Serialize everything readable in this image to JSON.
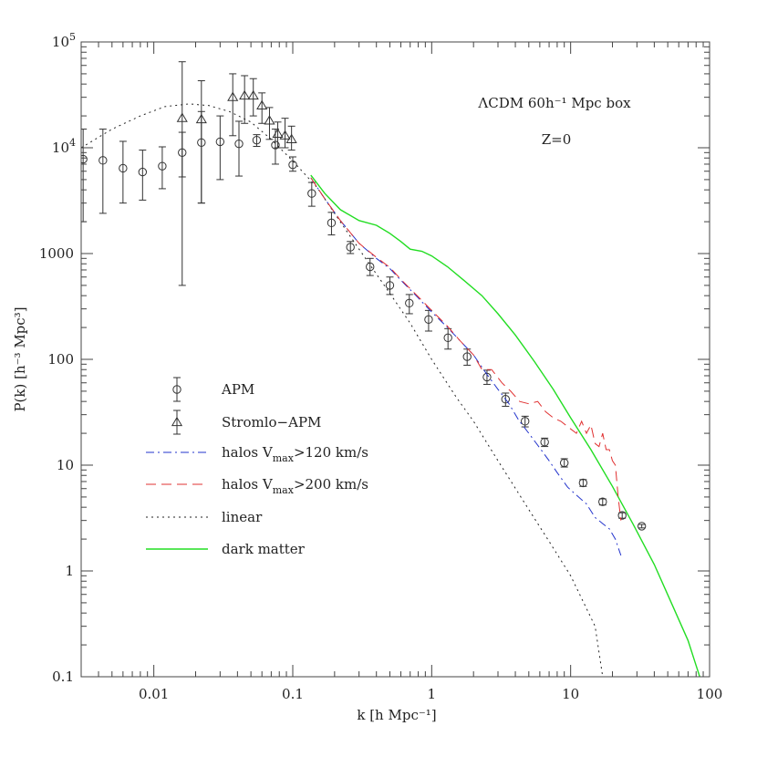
{
  "chart_data": {
    "type": "scatter",
    "xscale": "log",
    "yscale": "log",
    "xlim": [
      0.003,
      100
    ],
    "ylim": [
      0.1,
      100000
    ],
    "xlabel": "k [h Mpc⁻¹]",
    "ylabel": "P(k) [h⁻³ Mpc³]",
    "annotations": [
      "ΛCDM 60h⁻¹ Mpc box",
      "Z=0"
    ],
    "x_ticks": [
      {
        "v": 0.01,
        "label": "0.01"
      },
      {
        "v": 0.1,
        "label": "0.1"
      },
      {
        "v": 1,
        "label": "1"
      },
      {
        "v": 10,
        "label": "10"
      },
      {
        "v": 100,
        "label": "100"
      }
    ],
    "y_ticks": [
      {
        "v": 0.1,
        "label": "0.1"
      },
      {
        "v": 1,
        "label": "1"
      },
      {
        "v": 10,
        "label": "10"
      },
      {
        "v": 100,
        "label": "100"
      },
      {
        "v": 1000,
        "label": "1000"
      },
      {
        "v": 10000,
        "label": "10",
        "exp": "4"
      },
      {
        "v": 100000,
        "label": "10",
        "exp": "5"
      }
    ],
    "legend": {
      "placement": "lower-left",
      "entries": [
        {
          "label": "APM",
          "marker": "circle"
        },
        {
          "label": "Stromlo−APM",
          "marker": "triangle"
        },
        {
          "label": "halos V",
          "sub": "max",
          "tail": ">120 km/s",
          "style": "dashdot",
          "color": "#2233cc"
        },
        {
          "label": "halos V",
          "sub": "max",
          "tail": ">200 km/s",
          "style": "dashed",
          "color": "#e03030"
        },
        {
          "label": "linear",
          "style": "dotted",
          "color": "#222222"
        },
        {
          "label": "dark matter",
          "style": "solid",
          "color": "#22dd22"
        }
      ]
    },
    "series": [
      {
        "name": "APM",
        "kind": "points",
        "marker": "circle",
        "points": [
          [
            0.0031,
            7800,
            2000,
            15000
          ],
          [
            0.0043,
            7600,
            2400,
            15000
          ],
          [
            0.006,
            6400,
            3000,
            11500
          ],
          [
            0.0083,
            5900,
            3200,
            9500
          ],
          [
            0.0115,
            6700,
            4100,
            10200
          ],
          [
            0.016,
            9000,
            5300,
            14000
          ],
          [
            0.022,
            11200,
            3000,
            22000
          ],
          [
            0.03,
            11400,
            5000,
            20000
          ],
          [
            0.041,
            10900,
            5400,
            17800
          ],
          [
            0.055,
            11800,
            10300,
            13300
          ],
          [
            0.075,
            10600,
            7000,
            15000
          ],
          [
            0.1,
            6900,
            6000,
            8200
          ],
          [
            0.137,
            3700,
            2800,
            4700
          ],
          [
            0.19,
            1950,
            1500,
            2450
          ],
          [
            0.26,
            1150,
            1000,
            1300
          ],
          [
            0.36,
            750,
            620,
            900
          ],
          [
            0.5,
            500,
            410,
            600
          ],
          [
            0.69,
            340,
            270,
            410
          ],
          [
            0.95,
            238,
            185,
            290
          ],
          [
            1.31,
            160,
            125,
            195
          ],
          [
            1.8,
            106,
            88,
            125
          ],
          [
            2.5,
            68,
            58,
            79
          ],
          [
            3.4,
            42,
            36,
            48
          ],
          [
            4.7,
            26,
            23,
            29
          ],
          [
            6.5,
            16.5,
            15,
            18
          ],
          [
            9,
            10.5,
            9.6,
            11.5
          ],
          [
            12.3,
            6.8,
            6.3,
            7.3
          ],
          [
            17,
            4.5,
            4.2,
            4.8
          ],
          [
            23.5,
            3.35,
            3.15,
            3.55
          ],
          [
            32.5,
            2.65,
            2.55,
            2.75
          ]
        ]
      },
      {
        "name": "Stromlo−APM",
        "kind": "points",
        "marker": "triangle",
        "points": [
          [
            0.016,
            19000,
            500,
            65000
          ],
          [
            0.022,
            18500,
            3000,
            43000
          ],
          [
            0.037,
            30000,
            13000,
            50000
          ],
          [
            0.045,
            31000,
            17000,
            48000
          ],
          [
            0.052,
            31000,
            20000,
            45000
          ],
          [
            0.06,
            25000,
            17000,
            33000
          ],
          [
            0.068,
            18000,
            12000,
            24000
          ],
          [
            0.078,
            13500,
            10000,
            17500
          ],
          [
            0.088,
            13000,
            10000,
            19000
          ],
          [
            0.098,
            12000,
            9500,
            16000
          ]
        ]
      },
      {
        "name": "linear",
        "kind": "line",
        "style": "dotted",
        "color": "#222222",
        "points": [
          [
            0.003,
            10000
          ],
          [
            0.005,
            15000
          ],
          [
            0.008,
            20000
          ],
          [
            0.012,
            24500
          ],
          [
            0.018,
            26000
          ],
          [
            0.025,
            25000
          ],
          [
            0.035,
            22000
          ],
          [
            0.05,
            17500
          ],
          [
            0.07,
            12000
          ],
          [
            0.1,
            7500
          ],
          [
            0.15,
            4200
          ],
          [
            0.2,
            2400
          ],
          [
            0.3,
            1100
          ],
          [
            0.5,
            420
          ],
          [
            0.7,
            220
          ],
          [
            1,
            100
          ],
          [
            1.5,
            44
          ],
          [
            2,
            26
          ],
          [
            3,
            11
          ],
          [
            5,
            3.8
          ],
          [
            7,
            1.9
          ],
          [
            10,
            0.9
          ],
          [
            15,
            0.3
          ],
          [
            17,
            0.1
          ]
        ]
      },
      {
        "name": "dark matter",
        "kind": "line",
        "style": "solid",
        "color": "#22dd22",
        "points": [
          [
            0.135,
            5500
          ],
          [
            0.17,
            3700
          ],
          [
            0.22,
            2600
          ],
          [
            0.3,
            2050
          ],
          [
            0.4,
            1850
          ],
          [
            0.5,
            1550
          ],
          [
            0.6,
            1300
          ],
          [
            0.7,
            1100
          ],
          [
            0.85,
            1050
          ],
          [
            1,
            950
          ],
          [
            1.3,
            750
          ],
          [
            1.7,
            560
          ],
          [
            2.3,
            400
          ],
          [
            3,
            270
          ],
          [
            4,
            170
          ],
          [
            5.5,
            95
          ],
          [
            7.5,
            52
          ],
          [
            10,
            28
          ],
          [
            14,
            14
          ],
          [
            20,
            6.3
          ],
          [
            28,
            2.8
          ],
          [
            40,
            1.15
          ],
          [
            55,
            0.45
          ],
          [
            70,
            0.22
          ],
          [
            85,
            0.1
          ]
        ]
      },
      {
        "name": "halos Vmax>120 km/s",
        "kind": "line",
        "style": "dashdot",
        "color": "#2233cc",
        "points": [
          [
            0.135,
            5200
          ],
          [
            0.17,
            3300
          ],
          [
            0.22,
            2050
          ],
          [
            0.3,
            1250
          ],
          [
            0.4,
            900
          ],
          [
            0.5,
            720
          ],
          [
            0.6,
            560
          ],
          [
            0.8,
            380
          ],
          [
            1,
            280
          ],
          [
            1.3,
            200
          ],
          [
            1.6,
            150
          ],
          [
            2,
            110
          ],
          [
            2.5,
            72
          ],
          [
            3,
            52
          ],
          [
            3.6,
            38
          ],
          [
            4.2,
            27
          ],
          [
            5,
            20
          ],
          [
            6,
            14.5
          ],
          [
            7,
            11
          ],
          [
            8,
            8.5
          ],
          [
            9.5,
            6.2
          ],
          [
            11,
            5.2
          ],
          [
            13,
            4.3
          ],
          [
            15,
            3.2
          ],
          [
            17,
            2.8
          ],
          [
            19,
            2.5
          ],
          [
            21,
            2
          ],
          [
            23,
            1.4
          ]
        ]
      },
      {
        "name": "halos Vmax>200 km/s",
        "kind": "line",
        "style": "dashed",
        "color": "#e03030",
        "points": [
          [
            0.135,
            5200
          ],
          [
            0.17,
            3300
          ],
          [
            0.22,
            2050
          ],
          [
            0.3,
            1250
          ],
          [
            0.4,
            920
          ],
          [
            0.5,
            740
          ],
          [
            0.6,
            570
          ],
          [
            0.8,
            390
          ],
          [
            1,
            290
          ],
          [
            1.3,
            205
          ],
          [
            1.6,
            150
          ],
          [
            2,
            110
          ],
          [
            2.3,
            80
          ],
          [
            2.7,
            80
          ],
          [
            3.2,
            60
          ],
          [
            3.7,
            50
          ],
          [
            4.3,
            40
          ],
          [
            5,
            38
          ],
          [
            5.8,
            40
          ],
          [
            6.6,
            32
          ],
          [
            7.5,
            28
          ],
          [
            8.5,
            26
          ],
          [
            10,
            22
          ],
          [
            11,
            20
          ],
          [
            12,
            26
          ],
          [
            13,
            20
          ],
          [
            14,
            24
          ],
          [
            15,
            16
          ],
          [
            16,
            15
          ],
          [
            17,
            20
          ],
          [
            18,
            14
          ],
          [
            19,
            14
          ],
          [
            20,
            11
          ],
          [
            21,
            10
          ],
          [
            22,
            5
          ],
          [
            23,
            3
          ]
        ]
      }
    ]
  }
}
